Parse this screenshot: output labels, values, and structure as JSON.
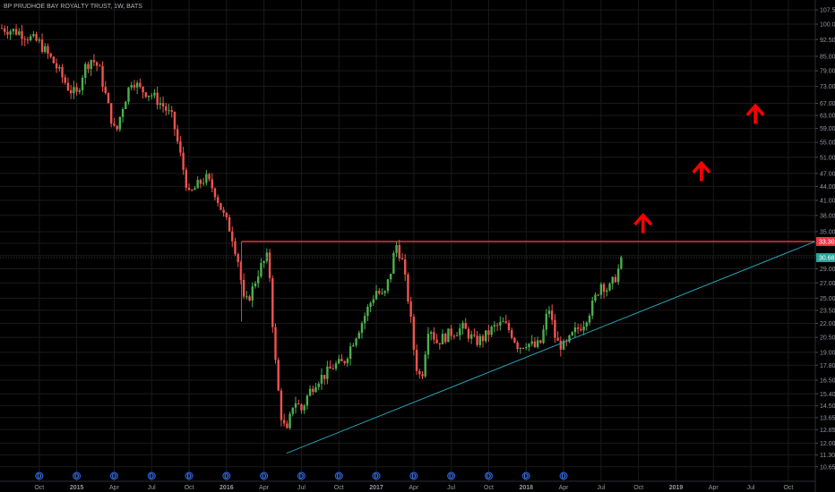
{
  "chart_data": {
    "type": "candlestick",
    "title": "BP PRUDHOE BAY ROYALTY TRUST, 1W, BATS",
    "y_scale": "log",
    "y_ticks": [
      "107.50",
      "100.00",
      "92.50",
      "85.00",
      "79.00",
      "73.00",
      "67.00",
      "63.00",
      "59.00",
      "55.00",
      "51.00",
      "47.00",
      "44.00",
      "41.00",
      "38.00",
      "35.00",
      "33.00",
      "31.00",
      "29.00",
      "27.00",
      "25.00",
      "23.50",
      "22.00",
      "20.50",
      "19.00",
      "17.80",
      "16.50",
      "15.40",
      "14.50",
      "13.65",
      "12.85",
      "12.00",
      "11.30",
      "10.65"
    ],
    "ylim": [
      10.4,
      110
    ],
    "x_ticks": [
      {
        "label": "Oct",
        "bold": false,
        "t": 2014.75
      },
      {
        "label": "2015",
        "bold": true,
        "t": 2015.0
      },
      {
        "label": "Apr",
        "bold": false,
        "t": 2015.25
      },
      {
        "label": "Jul",
        "bold": false,
        "t": 2015.5
      },
      {
        "label": "Oct",
        "bold": false,
        "t": 2015.75
      },
      {
        "label": "2016",
        "bold": true,
        "t": 2016.0
      },
      {
        "label": "Apr",
        "bold": false,
        "t": 2016.25
      },
      {
        "label": "Jul",
        "bold": false,
        "t": 2016.5
      },
      {
        "label": "Oct",
        "bold": false,
        "t": 2016.75
      },
      {
        "label": "2017",
        "bold": true,
        "t": 2017.0
      },
      {
        "label": "Apr",
        "bold": false,
        "t": 2017.25
      },
      {
        "label": "Jul",
        "bold": false,
        "t": 2017.5
      },
      {
        "label": "Oct",
        "bold": false,
        "t": 2017.75
      },
      {
        "label": "2018",
        "bold": true,
        "t": 2018.0
      },
      {
        "label": "Apr",
        "bold": false,
        "t": 2018.25
      },
      {
        "label": "Jul",
        "bold": false,
        "t": 2018.5
      },
      {
        "label": "Oct",
        "bold": false,
        "t": 2018.75
      },
      {
        "label": "2019",
        "bold": true,
        "t": 2019.0
      },
      {
        "label": "Apr",
        "bold": false,
        "t": 2019.25
      },
      {
        "label": "Jul",
        "bold": false,
        "t": 2019.5
      },
      {
        "label": "Oct",
        "bold": false,
        "t": 2019.75
      }
    ],
    "dividend_markers": {
      "label": "D",
      "t": [
        2014.75,
        2015.0,
        2015.25,
        2015.5,
        2015.75,
        2016.0,
        2016.25,
        2016.5,
        2016.75,
        2017.0,
        2017.25,
        2017.5,
        2017.75,
        2018.0,
        2018.25
      ]
    },
    "close_path": [
      [
        2014.5,
        98
      ],
      [
        2014.62,
        96
      ],
      [
        2014.75,
        91
      ],
      [
        2014.85,
        82
      ],
      [
        2014.95,
        72
      ],
      [
        2015.0,
        70
      ],
      [
        2015.05,
        80
      ],
      [
        2015.1,
        84
      ],
      [
        2015.15,
        80
      ],
      [
        2015.22,
        64
      ],
      [
        2015.26,
        57
      ],
      [
        2015.3,
        65
      ],
      [
        2015.37,
        76
      ],
      [
        2015.42,
        72
      ],
      [
        2015.5,
        70
      ],
      [
        2015.58,
        66
      ],
      [
        2015.64,
        62
      ],
      [
        2015.7,
        50
      ],
      [
        2015.75,
        42
      ],
      [
        2015.8,
        44
      ],
      [
        2015.86,
        46
      ],
      [
        2015.92,
        43
      ],
      [
        2015.98,
        38
      ],
      [
        2016.03,
        35
      ],
      [
        2016.08,
        30
      ],
      [
        2016.12,
        24
      ],
      [
        2016.17,
        26
      ],
      [
        2016.22,
        29
      ],
      [
        2016.28,
        31
      ],
      [
        2016.32,
        19
      ],
      [
        2016.36,
        14
      ],
      [
        2016.4,
        12.5
      ],
      [
        2016.45,
        15
      ],
      [
        2016.5,
        14.2
      ],
      [
        2016.55,
        15.5
      ],
      [
        2016.6,
        16.5
      ],
      [
        2016.66,
        17
      ],
      [
        2016.72,
        17.8
      ],
      [
        2016.78,
        18
      ],
      [
        2016.84,
        20
      ],
      [
        2016.9,
        22
      ],
      [
        2016.95,
        24
      ],
      [
        2017.0,
        26
      ],
      [
        2017.05,
        25
      ],
      [
        2017.1,
        29
      ],
      [
        2017.13,
        33
      ],
      [
        2017.17,
        30.5
      ],
      [
        2017.22,
        24
      ],
      [
        2017.26,
        18
      ],
      [
        2017.3,
        16.5
      ],
      [
        2017.35,
        22
      ],
      [
        2017.4,
        20
      ],
      [
        2017.5,
        21
      ],
      [
        2017.58,
        21.5
      ],
      [
        2017.66,
        20
      ],
      [
        2017.72,
        20.5
      ],
      [
        2017.78,
        21.5
      ],
      [
        2017.85,
        22
      ],
      [
        2017.9,
        21
      ],
      [
        2017.95,
        19.5
      ],
      [
        2018.0,
        20
      ],
      [
        2018.06,
        19.5
      ],
      [
        2018.1,
        20
      ],
      [
        2018.15,
        24
      ],
      [
        2018.2,
        20
      ],
      [
        2018.26,
        19.5
      ],
      [
        2018.32,
        21
      ],
      [
        2018.38,
        22
      ],
      [
        2018.44,
        24
      ],
      [
        2018.5,
        27
      ],
      [
        2018.55,
        26
      ],
      [
        2018.6,
        28
      ],
      [
        2018.65,
        31
      ]
    ],
    "resistance_line": {
      "value": 33.3,
      "t_start": 2016.1,
      "t_end": 2019.93,
      "color": "#f23645"
    },
    "support_trendline": {
      "points": [
        [
          2016.4,
          11.4
        ],
        [
          2019.93,
          33.3
        ]
      ],
      "color": "#27a0b4"
    },
    "current_price": {
      "label": "30.68",
      "value": 30.68,
      "color": "#26a69a"
    },
    "resistance_tag": {
      "label": "33.30",
      "color": "#f23645"
    },
    "arrows": {
      "color": "#ff0000",
      "points": [
        [
          2018.78,
          36.5
        ],
        [
          2019.17,
          47.5
        ],
        [
          2019.53,
          63.5
        ]
      ]
    },
    "colors": {
      "up": "#4caf50",
      "down": "#ef5350",
      "grid": "#1a1a1a",
      "axis_text": "#9598a1"
    }
  }
}
